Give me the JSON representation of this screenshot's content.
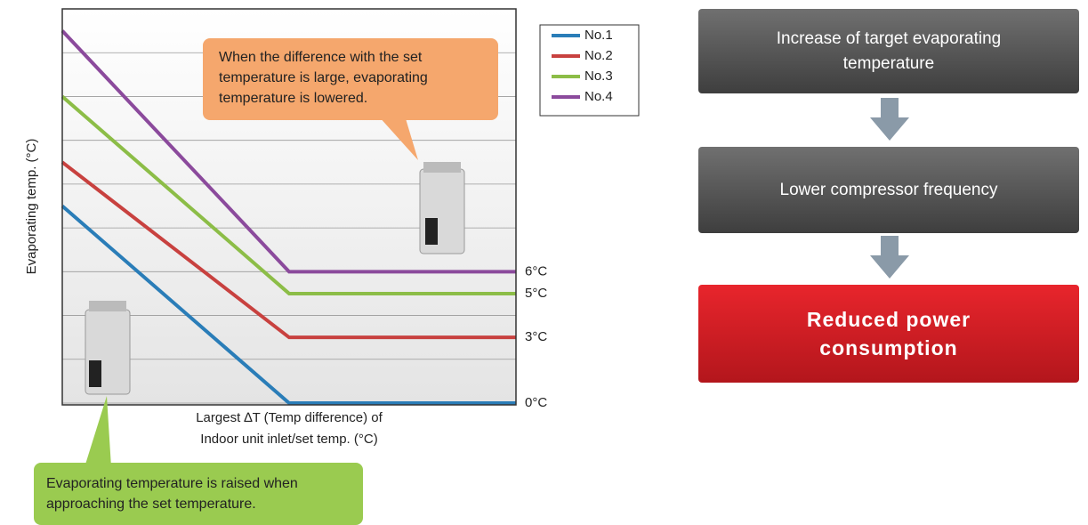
{
  "chart_data": {
    "type": "line",
    "y_label": "Evaporating temp. (°C)",
    "x_label": [
      "Largest ∆T (Temp difference) of",
      "Indoor unit inlet/set temp. (°C)"
    ],
    "categories": [
      null,
      null,
      null
    ],
    "ylim": [
      0,
      18
    ],
    "yticks": [
      0,
      2,
      4,
      6,
      8,
      10,
      12,
      14,
      16,
      18
    ],
    "grid": true,
    "legend": "top-right",
    "series": [
      {
        "name": "No.1",
        "color": "#2a7db8",
        "values": [
          9,
          0,
          0
        ],
        "end_label": "0°C"
      },
      {
        "name": "No.2",
        "color": "#c8413f",
        "values": [
          11,
          3,
          3
        ],
        "end_label": "3°C"
      },
      {
        "name": "No.3",
        "color": "#8cbd47",
        "values": [
          14,
          5,
          5
        ],
        "end_label": "5°C"
      },
      {
        "name": "No.4",
        "color": "#8b4a9c",
        "values": [
          17,
          6,
          6
        ],
        "end_label": "6°C"
      }
    ]
  },
  "callouts": {
    "top": "When the difference with the set temperature is large, evaporating temperature is lowered.",
    "bottom": "Evaporating temperature is raised when approaching the set temperature."
  },
  "flow": [
    "Increase of target evaporating temperature",
    "Lower compressor frequency",
    "Reduced power consumption"
  ]
}
